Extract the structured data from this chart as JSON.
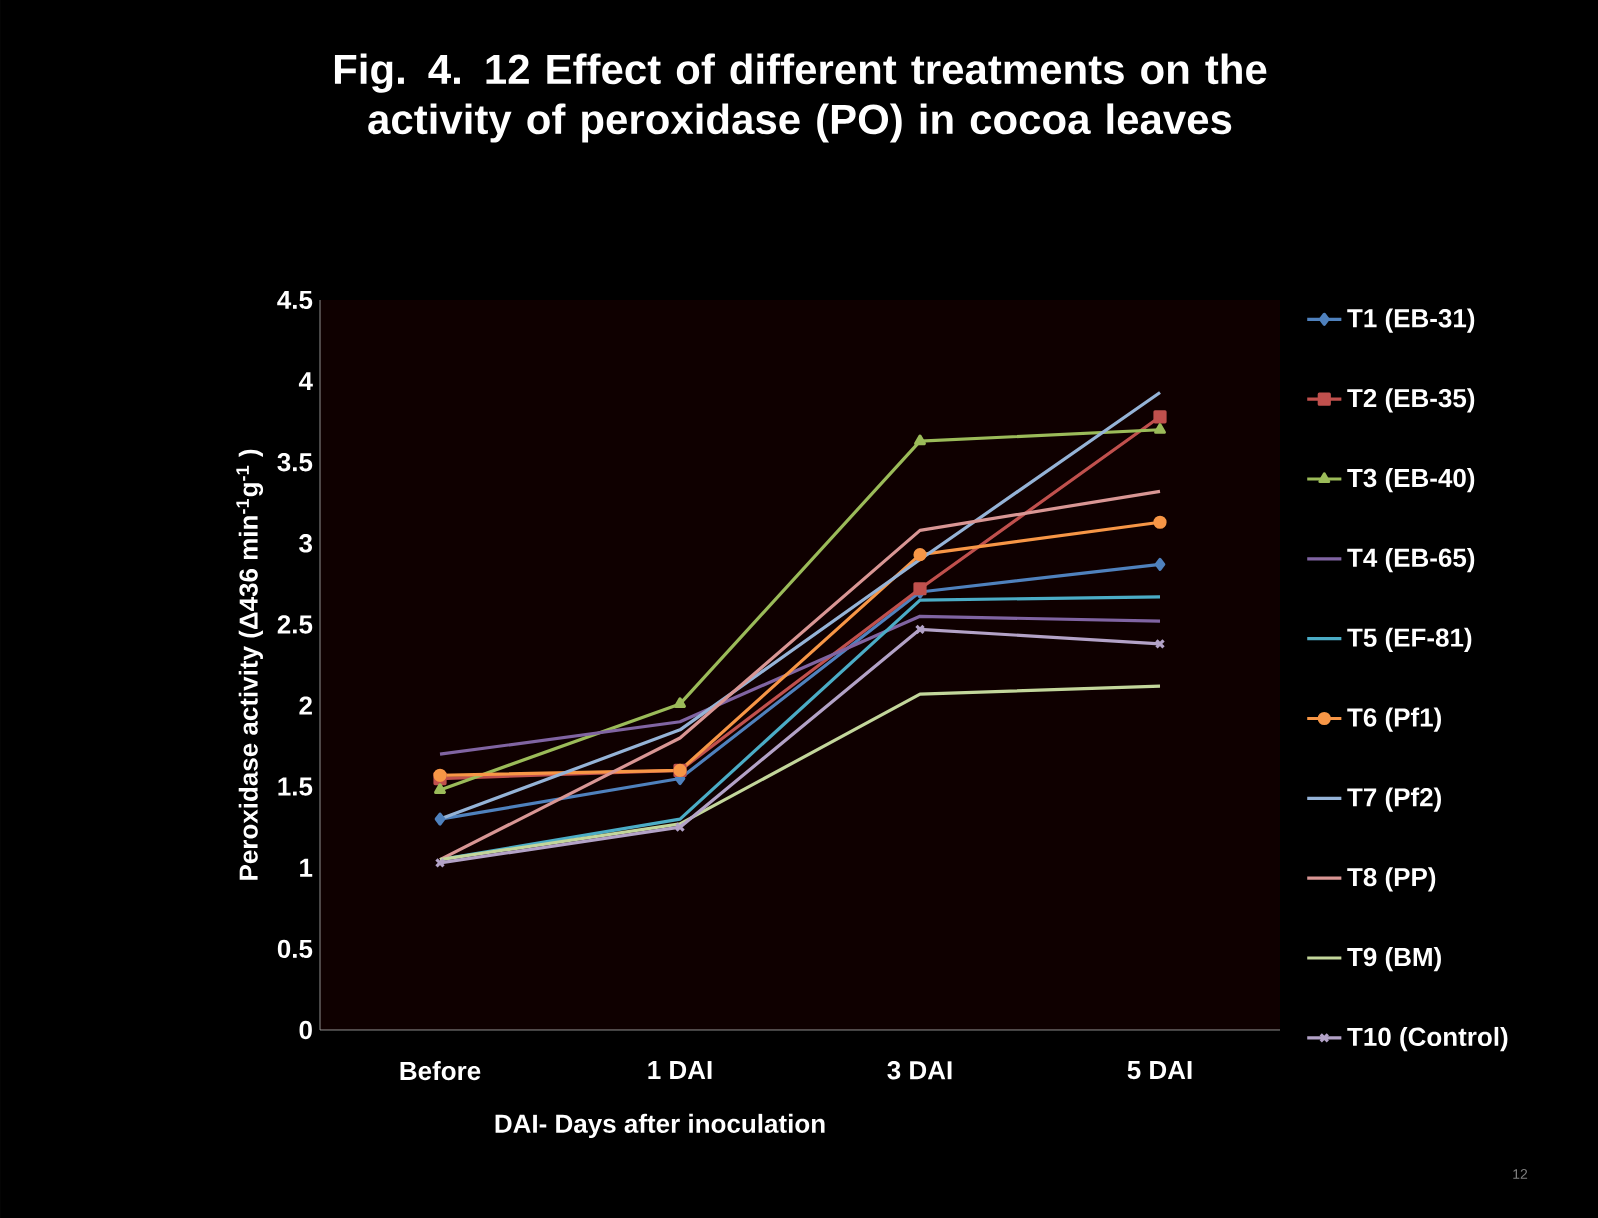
{
  "chart_data": {
    "type": "line",
    "title": "Fig. 4. 12 Effect of different treatments on the activity of peroxidase (PO) in cocoa leaves",
    "xlabel": "DAI- Days after inoculation",
    "ylabel": "Peroxidase activity (Δ436 min$^{-1}$g$^{-1}$ )",
    "categories": [
      "Before",
      "1 DAI",
      "3 DAI",
      "5 DAI"
    ],
    "ylim": [
      0,
      4.5
    ],
    "yticks": [
      0,
      0.5,
      1,
      1.5,
      2,
      2.5,
      3,
      3.5,
      4,
      4.5
    ],
    "legend": "right",
    "grid": false,
    "annotations": [
      "12"
    ],
    "series": [
      {
        "name": "T1 (EB-31)",
        "color": "#4f81bd",
        "marker": "diamond",
        "values": [
          1.3,
          1.55,
          2.7,
          2.87
        ]
      },
      {
        "name": "T2 (EB-35)",
        "color": "#c0504d",
        "marker": "square",
        "values": [
          1.55,
          1.6,
          2.72,
          3.78
        ]
      },
      {
        "name": "T3 (EB-40)",
        "color": "#9bbb59",
        "marker": "triangle",
        "values": [
          1.48,
          2.01,
          3.63,
          3.7
        ]
      },
      {
        "name": "T4 (EB-65)",
        "color": "#8064a2",
        "marker": "none",
        "values": [
          1.7,
          1.9,
          2.55,
          2.52
        ]
      },
      {
        "name": "T5 (EF-81)",
        "color": "#4bacc6",
        "marker": "none",
        "values": [
          1.05,
          1.3,
          2.65,
          2.67
        ]
      },
      {
        "name": "T6 (Pf1)",
        "color": "#f79646",
        "marker": "circle",
        "values": [
          1.57,
          1.6,
          2.93,
          3.13
        ]
      },
      {
        "name": "T7 (Pf2)",
        "color": "#95b3d7",
        "marker": "none",
        "values": [
          1.3,
          1.85,
          2.9,
          3.93
        ]
      },
      {
        "name": "T8 (PP)",
        "color": "#d99694",
        "marker": "none",
        "values": [
          1.05,
          1.8,
          3.08,
          3.32
        ]
      },
      {
        "name": "T9 (BM)",
        "color": "#c3d69b",
        "marker": "none",
        "values": [
          1.05,
          1.27,
          2.07,
          2.12
        ]
      },
      {
        "name": "T10 (Control)",
        "color": "#b3a2c7",
        "marker": "cross",
        "values": [
          1.03,
          1.25,
          2.47,
          2.38
        ]
      }
    ]
  }
}
